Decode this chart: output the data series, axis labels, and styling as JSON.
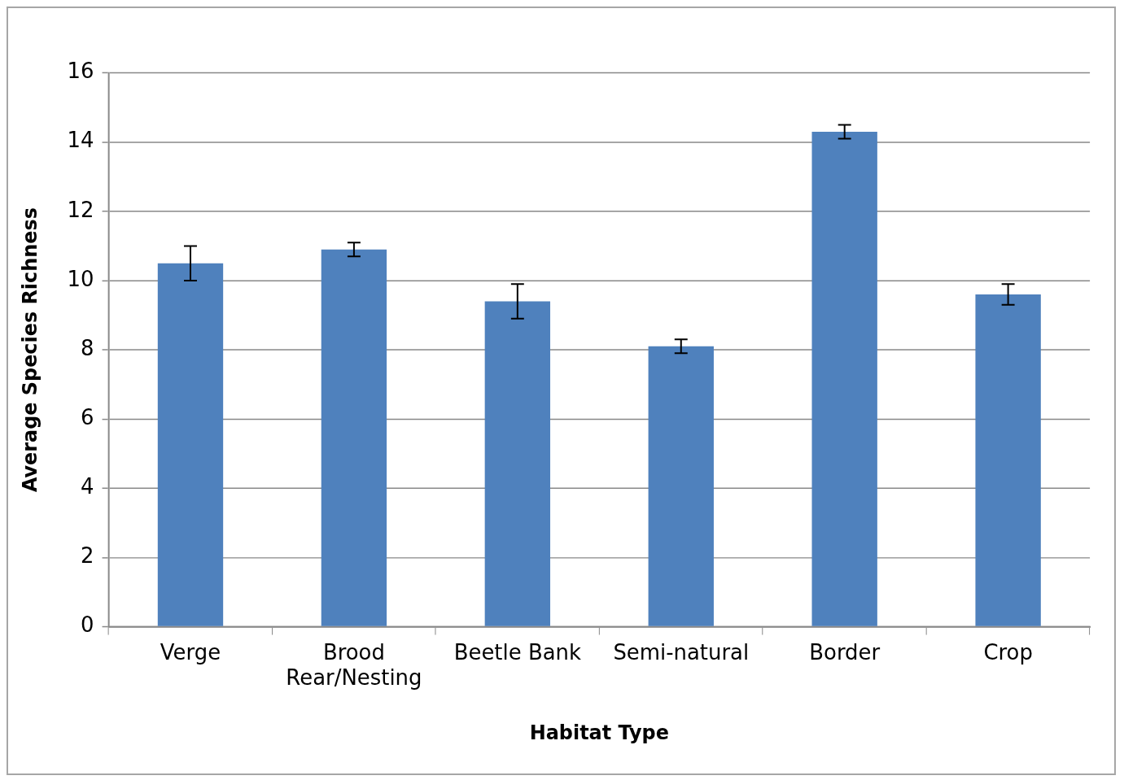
{
  "chart_data": {
    "type": "bar",
    "xlabel": "Habitat Type",
    "ylabel": "Average Species Richness",
    "categories": [
      "Verge",
      "Brood Rear/Nesting",
      "Beetle Bank",
      "Semi-natural",
      "Border",
      "Crop"
    ],
    "values": [
      10.5,
      10.9,
      9.4,
      8.1,
      14.3,
      9.6
    ],
    "errors": [
      0.5,
      0.2,
      0.5,
      0.2,
      0.2,
      0.3
    ],
    "color": "#4f81bd",
    "ylim": [
      0,
      16
    ],
    "yticks": [
      0,
      2,
      4,
      6,
      8,
      10,
      12,
      14,
      16
    ],
    "grid": "y",
    "legend": false
  }
}
